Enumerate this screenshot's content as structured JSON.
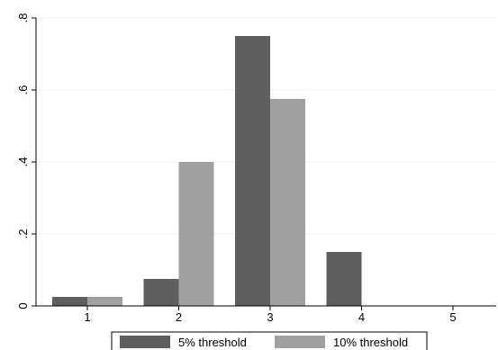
{
  "chart_data": {
    "type": "bar",
    "categories": [
      "1",
      "2",
      "3",
      "4",
      "5"
    ],
    "series": [
      {
        "name": "5% threshold",
        "values": [
          0.025,
          0.075,
          0.75,
          0.15,
          0
        ],
        "color": "#5f5f5f"
      },
      {
        "name": "10% threshold",
        "values": [
          0.025,
          0.4,
          0.575,
          0,
          0
        ],
        "color": "#a0a0a0"
      }
    ],
    "y_ticks": [
      {
        "value": 0,
        "label": "0"
      },
      {
        "value": 0.2,
        "label": ".2"
      },
      {
        "value": 0.4,
        "label": ".4"
      },
      {
        "value": 0.6,
        "label": ".6"
      },
      {
        "value": 0.8,
        "label": ".8"
      }
    ],
    "ylim": [
      0,
      0.8
    ],
    "title": "",
    "xlabel": "",
    "ylabel": "",
    "grid": true,
    "grid_color": "#eaf2f3",
    "legend_position": "bottom"
  }
}
